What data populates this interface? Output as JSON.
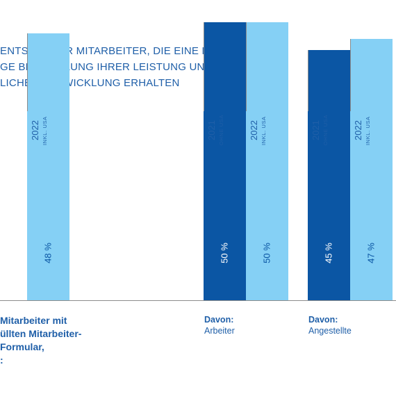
{
  "title": {
    "lines": [
      "ENTSATZ DER MITARBEITER, DIE EINE REGEL-",
      "GE BEURTEILUNG IHRER LEISTUNG UND IHRER",
      "LICHEN ENTWICKLUNG ERHALTEN"
    ]
  },
  "colors": {
    "dark_bar": "#0b56a4",
    "light_bar": "#85d0f5",
    "axis": "#8c8c8c",
    "text": "#1f5fa8"
  },
  "chart_data": {
    "type": "bar",
    "categories": [
      "Mitarbeiter mit ... üllten Mitarbeiter- Formular,",
      "Davon: Arbeiter",
      "Davon: Angestellte"
    ],
    "series": [
      {
        "name": "2021 OHNE USA",
        "values": [
          null,
          50,
          45
        ]
      },
      {
        "name": "2022 INKL. USA",
        "values": [
          48,
          50,
          47
        ]
      }
    ],
    "data_labels": [
      "48 %",
      "50 %",
      "50 %",
      "45 %",
      "47 %"
    ],
    "ylim": [
      0,
      100
    ],
    "grid": false,
    "legend": "column headers above bars"
  },
  "header_labels": {
    "year_2021": "2021",
    "sub_2021": "OHNE USA",
    "year_2022": "2022",
    "sub_2022": "INKL. USA"
  },
  "category_labels": {
    "left": [
      "Mitarbeiter mit",
      "üllten Mitarbeiter-",
      "Formular,",
      ":"
    ],
    "arbeiter": {
      "head": "Davon:",
      "sub": "Arbeiter"
    },
    "angestellte": {
      "head": "Davon:",
      "sub": "Angestellte"
    }
  }
}
